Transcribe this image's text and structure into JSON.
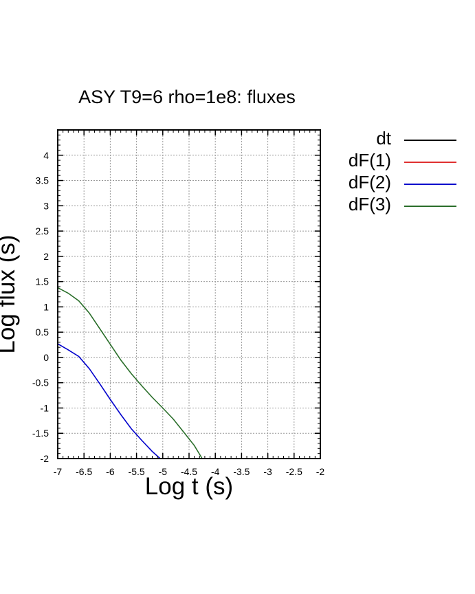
{
  "chart_data": {
    "type": "line",
    "title": "ASY T9=6 rho=1e8: fluxes",
    "xlabel": "Log t (s)",
    "ylabel": "Log flux (s)",
    "xlim": [
      -7,
      -2
    ],
    "ylim": [
      -2,
      4.5
    ],
    "x_ticks": [
      "-7",
      "-6.5",
      "-6",
      "-5.5",
      "-5",
      "-4.5",
      "-4",
      "-3.5",
      "-3",
      "-2.5",
      "-2"
    ],
    "y_ticks": [
      "-2",
      "-1.5",
      "-1",
      "-0.5",
      "0",
      "0.5",
      "1",
      "1.5",
      "2",
      "2.5",
      "3",
      "3.5",
      "4"
    ],
    "grid": true,
    "legend_position": "outside-right-top",
    "series": [
      {
        "name": "dt",
        "color": "#000000",
        "x": [],
        "y": []
      },
      {
        "name": "dF(1)",
        "color": "#e03030",
        "x": [],
        "y": []
      },
      {
        "name": "dF(2)",
        "color": "#0000cc",
        "x": [
          -7.0,
          -6.8,
          -6.6,
          -6.4,
          -6.2,
          -6.0,
          -5.8,
          -5.6,
          -5.4,
          -5.2,
          -5.05
        ],
        "y": [
          0.27,
          0.15,
          0.02,
          -0.22,
          -0.52,
          -0.83,
          -1.13,
          -1.41,
          -1.64,
          -1.86,
          -2.0
        ]
      },
      {
        "name": "dF(3)",
        "color": "#2a6e2a",
        "x": [
          -7.0,
          -6.8,
          -6.6,
          -6.4,
          -6.2,
          -6.0,
          -5.8,
          -5.6,
          -5.4,
          -5.2,
          -5.0,
          -4.8,
          -4.6,
          -4.4,
          -4.25
        ],
        "y": [
          1.38,
          1.27,
          1.12,
          0.88,
          0.57,
          0.26,
          -0.05,
          -0.32,
          -0.56,
          -0.79,
          -1.0,
          -1.22,
          -1.48,
          -1.74,
          -2.0
        ]
      }
    ]
  }
}
